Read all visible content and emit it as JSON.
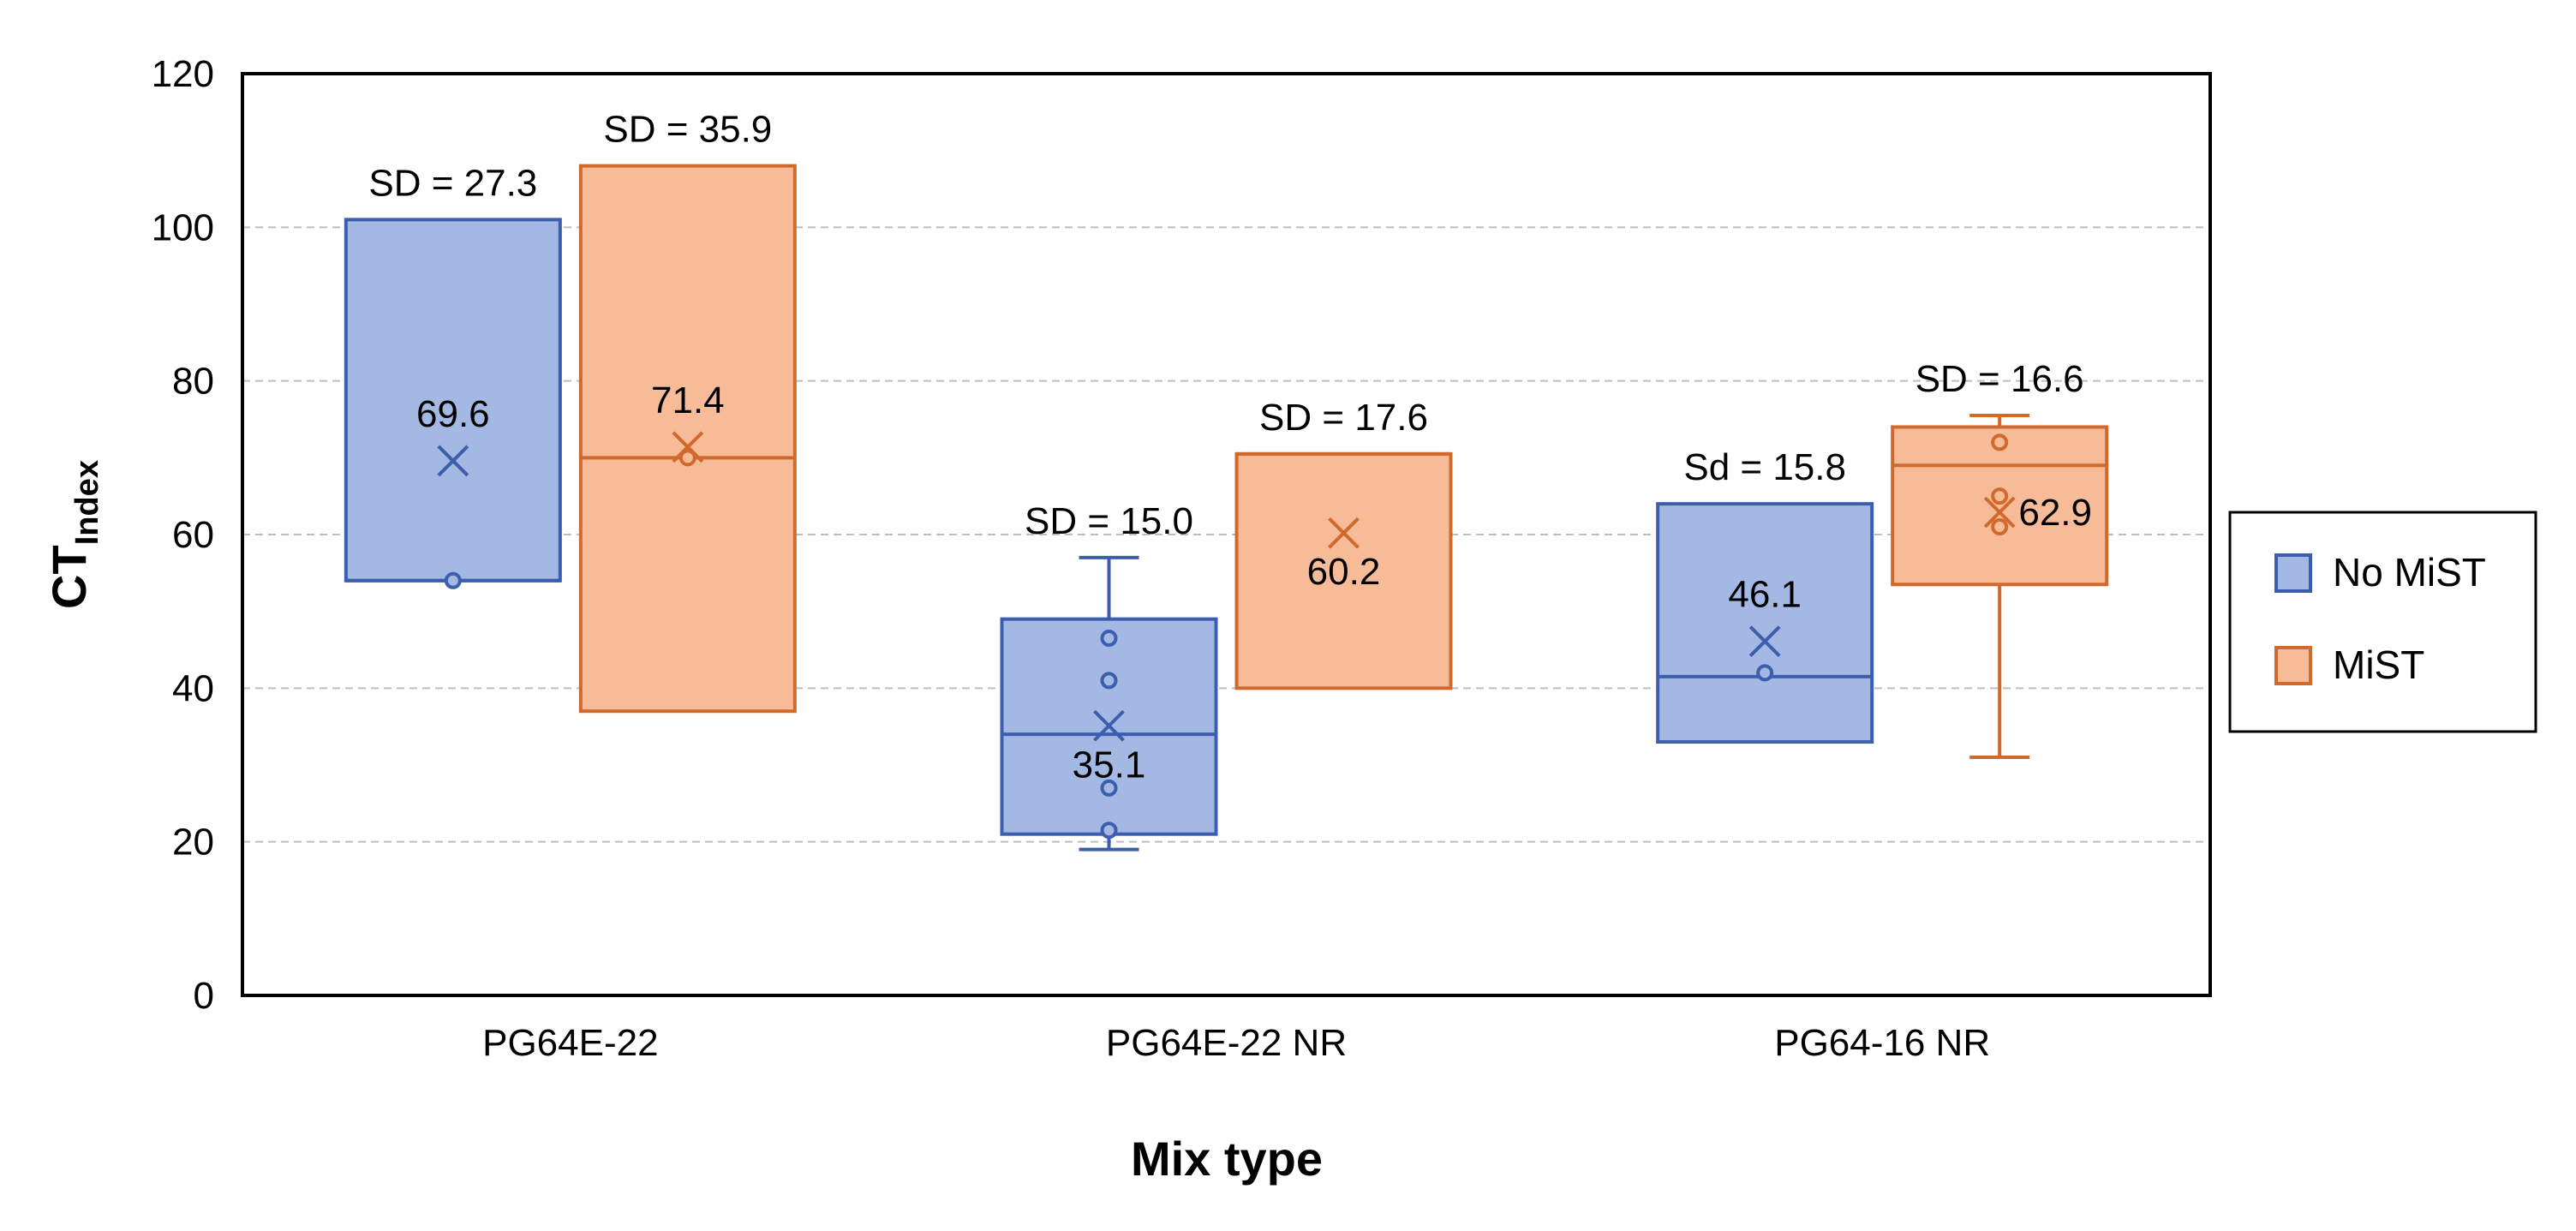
{
  "chart_data": {
    "type": "box",
    "title": "",
    "xlabel": "Mix type",
    "ylabel_main": "CT",
    "ylabel_sub": "Index",
    "ylim": [
      0,
      120
    ],
    "ytick_values": [
      0,
      20,
      40,
      60,
      80,
      100,
      120
    ],
    "ytick_labels": [
      "0",
      "20",
      "40",
      "60",
      "80",
      "100",
      "120"
    ],
    "grid": true,
    "legend_position": "right",
    "categories": [
      "PG64E-22",
      "PG64E-22 NR",
      "PG64-16 NR"
    ],
    "series": [
      {
        "name": "No MiST",
        "fill": "#a3b9e3",
        "stroke": "#3c5eac",
        "boxes": [
          {
            "q1": 54.0,
            "median": 54.0,
            "q3": 101.0,
            "whisker_low": null,
            "whisker_high": null,
            "mean": 69.6,
            "mean_label": "69.6",
            "sd_label": "SD = 27.3",
            "points": [
              54.0
            ]
          },
          {
            "q1": 21.0,
            "median": 34.0,
            "q3": 49.0,
            "whisker_low": 19.0,
            "whisker_high": 57.0,
            "mean": 35.1,
            "mean_label": "35.1",
            "sd_label": "SD = 15.0",
            "points": [
              46.5,
              41.0,
              27.0,
              21.5
            ]
          },
          {
            "q1": 33.0,
            "median": 41.5,
            "q3": 64.0,
            "whisker_low": null,
            "whisker_high": null,
            "mean": 46.1,
            "mean_label": "46.1",
            "sd_label": "Sd = 15.8",
            "points": [
              42.0
            ]
          }
        ]
      },
      {
        "name": "MiST",
        "fill": "#f7bb98",
        "stroke": "#d1692d",
        "boxes": [
          {
            "q1": 37.0,
            "median": 70.0,
            "q3": 108.0,
            "whisker_low": null,
            "whisker_high": null,
            "mean": 71.4,
            "mean_label": "71.4",
            "sd_label": "SD = 35.9",
            "points": [
              70.0
            ]
          },
          {
            "q1": 40.0,
            "median": 70.5,
            "q3": 70.5,
            "whisker_low": null,
            "whisker_high": null,
            "mean": 60.2,
            "mean_label": "60.2",
            "sd_label": "SD = 17.6",
            "points": []
          },
          {
            "q1": 53.5,
            "median": 69.0,
            "q3": 74.0,
            "whisker_low": 31.0,
            "whisker_high": 75.5,
            "mean": 62.9,
            "mean_label": "62.9",
            "sd_label": "SD = 16.6",
            "points": [
              72.0,
              65.0,
              61.0
            ]
          }
        ]
      }
    ]
  }
}
